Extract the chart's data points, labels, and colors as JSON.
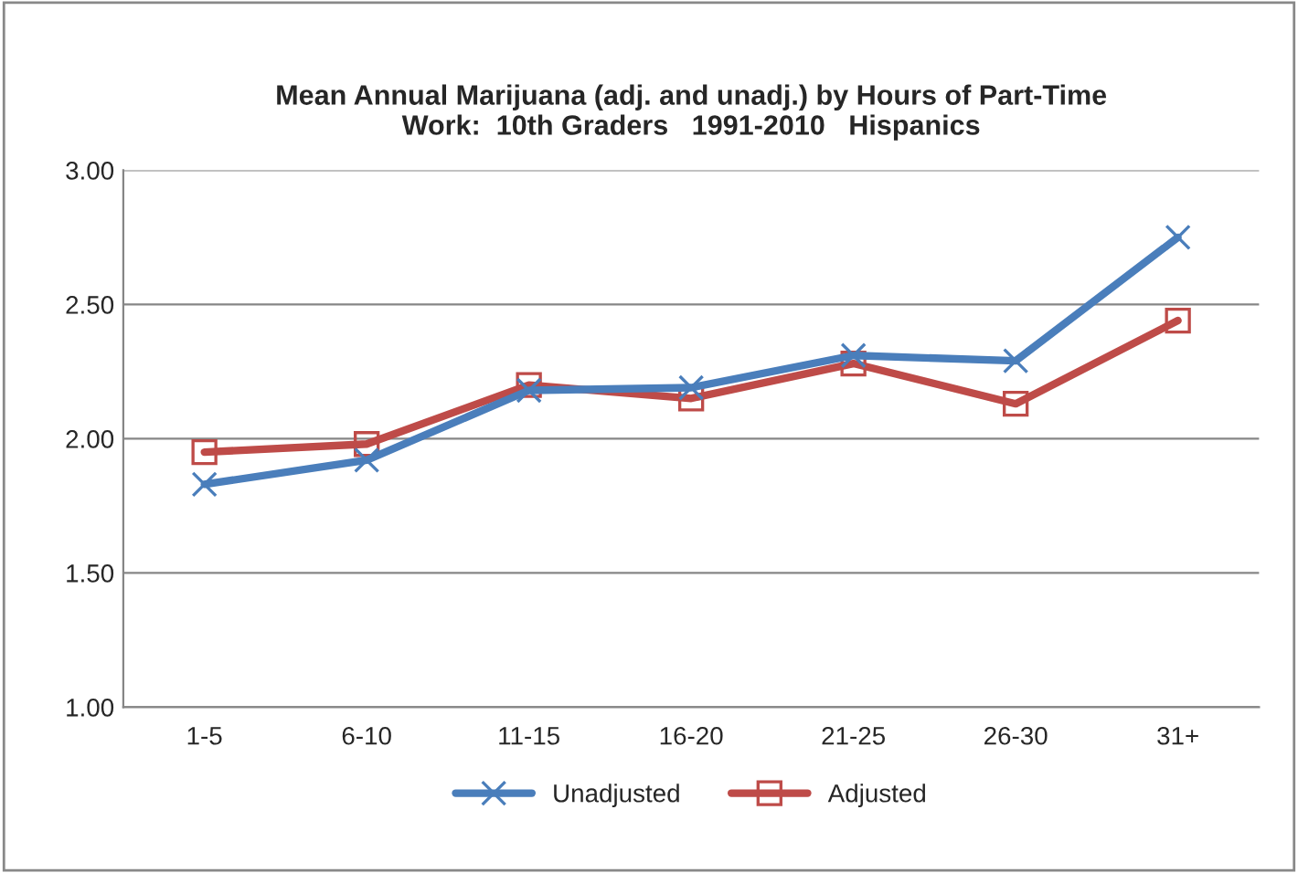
{
  "chart_data": {
    "type": "line",
    "title": "Mean Annual Marijuana (adj. and unadj.) by Hours of Part-Time\nWork:  10th Graders   1991-2010   Hispanics",
    "categories": [
      "1-5",
      "6-10",
      "11-15",
      "16-20",
      "21-25",
      "26-30",
      "31+"
    ],
    "series": [
      {
        "name": "Unadjusted",
        "color": "#4a7ebb",
        "marker": "cross",
        "values": [
          1.83,
          1.92,
          2.18,
          2.19,
          2.31,
          2.29,
          2.75
        ]
      },
      {
        "name": "Adjusted",
        "color": "#be4b48",
        "marker": "square",
        "values": [
          1.95,
          1.98,
          2.2,
          2.15,
          2.28,
          2.13,
          2.44
        ]
      }
    ],
    "ylim": [
      1.0,
      3.0
    ],
    "yticks": [
      {
        "value": 1.0,
        "label": "1.00"
      },
      {
        "value": 1.5,
        "label": "1.50"
      },
      {
        "value": 2.0,
        "label": "2.00"
      },
      {
        "value": 2.5,
        "label": "2.50"
      },
      {
        "value": 3.0,
        "label": "3.00"
      }
    ],
    "grid": "y",
    "legend": "bottom",
    "line_style": "solid"
  }
}
